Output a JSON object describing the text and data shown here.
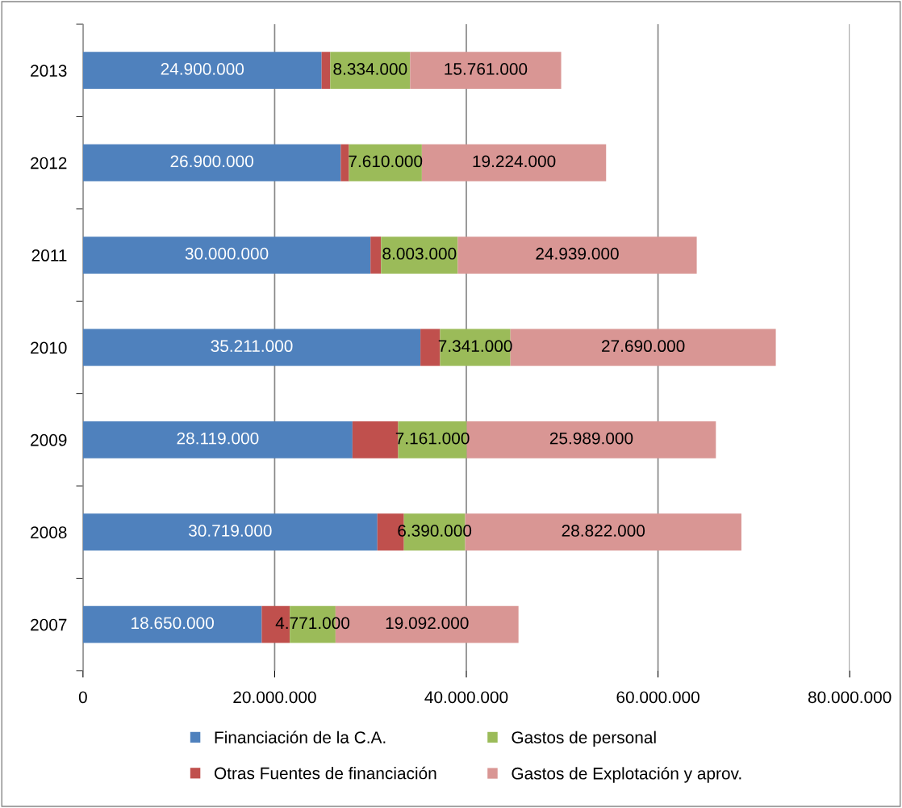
{
  "chart_data": {
    "type": "bar",
    "orientation": "horizontal",
    "stacked": true,
    "categories": [
      "2013",
      "2012",
      "2011",
      "2010",
      "2009",
      "2008",
      "2007"
    ],
    "series": [
      {
        "name": "Financiación de la C.A.",
        "color": "#4f81bd",
        "values": [
          24900000,
          26900000,
          30000000,
          35211000,
          28119000,
          30719000,
          18650000
        ],
        "value_labels": [
          "24.900.000",
          "26.900.000",
          "30.000.000",
          "35.211.000",
          "28.119.000",
          "30.719.000",
          "18.650.000"
        ]
      },
      {
        "name": "Otras Fuentes de financiación",
        "color": "#c0504d",
        "values": [
          900000,
          850000,
          1100000,
          2050000,
          4770000,
          2770000,
          2930000
        ]
      },
      {
        "name": "Gastos de personal",
        "color": "#9bbb59",
        "values": [
          8334000,
          7610000,
          8003000,
          7341000,
          7161000,
          6390000,
          4771000
        ],
        "value_labels": [
          "8.334.000",
          "7.610.000",
          "8.003.000",
          "7.341.000",
          "7.161.000",
          "6.390.000",
          "4.771.000"
        ]
      },
      {
        "name": "Gastos de Explotación y aprov.",
        "color": "#d99694",
        "values": [
          15761000,
          19224000,
          24939000,
          27690000,
          25989000,
          28822000,
          19092000
        ],
        "value_labels": [
          "15.761.000",
          "19.224.000",
          "24.939.000",
          "27.690.000",
          "25.989.000",
          "28.822.000",
          "19.092.000"
        ]
      }
    ],
    "xlim": [
      0,
      80000000
    ],
    "xticks": [
      0,
      {
        "value": 20000000,
        "label": "20.000.000"
      },
      {
        "value": 40000000,
        "label": "40.000.000"
      },
      {
        "value": 60000000,
        "label": "60.000.000"
      },
      {
        "value": 80000000,
        "label": "80.000.000"
      }
    ],
    "grid": "x",
    "legend": "bottom"
  }
}
